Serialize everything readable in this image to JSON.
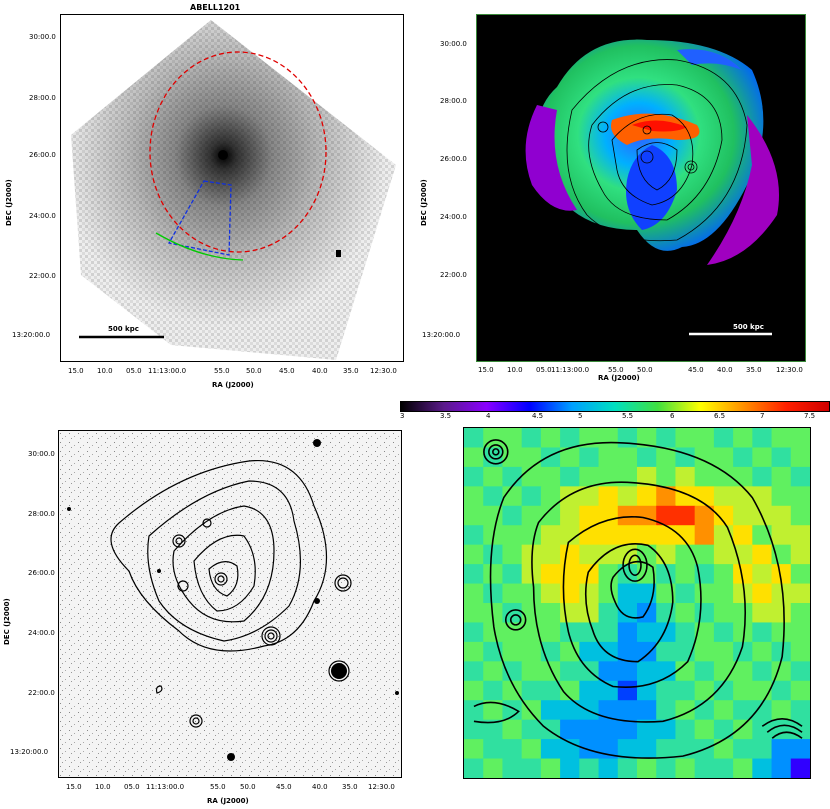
{
  "title": "ABELL1201",
  "scalebar": "500 kpc",
  "axes": {
    "xlabel": "RA (J2000)",
    "ylabel": "DEC (J2000)",
    "ra_ticks": [
      "15.0",
      "10.0",
      "05.0",
      "11:13:00.0",
      "55.0",
      "50.0",
      "45.0",
      "40.0",
      "35.0",
      "12:30.0"
    ],
    "dec_ticks": [
      "30:00.0",
      "28:00.0",
      "26:00.0",
      "24:00.0",
      "22:00.0",
      "13:20:00.0"
    ]
  },
  "colorbar": {
    "ticks": [
      "3",
      "3.5",
      "4",
      "4.5",
      "5",
      "5.5",
      "6",
      "6.5",
      "7",
      "7.5"
    ],
    "colors": [
      "#000000",
      "#5a1a8a",
      "#8a00ff",
      "#0000ff",
      "#00a0ff",
      "#00e0c0",
      "#40e040",
      "#ffff00",
      "#ff9000",
      "#ff2000",
      "#d00000"
    ]
  },
  "panels": {
    "xray": "xray-image-panel",
    "tmap": "temperature-map-panel",
    "optical": "optical-overlay-panel",
    "zoom": "temperature-zoom-panel"
  }
}
